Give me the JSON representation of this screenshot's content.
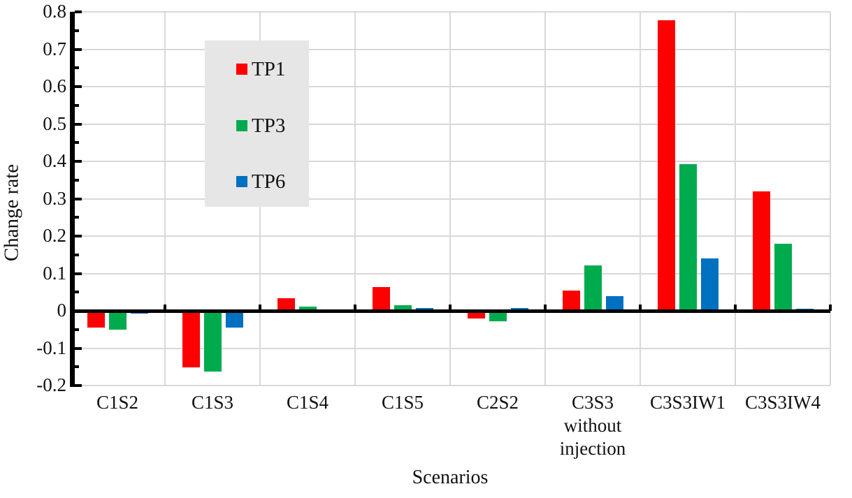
{
  "chart_data": {
    "type": "bar",
    "title": "",
    "xlabel": "Scenarios",
    "ylabel": "Change rate",
    "categories": [
      "C1S2",
      "C1S3",
      "C1S4",
      "C1S5",
      "C2S2",
      "C3S3\nwithout\ninjection",
      "C3S3IW1",
      "C3S3IW4"
    ],
    "series": [
      {
        "name": "TP1",
        "color": "#FF0000",
        "values": [
          -0.045,
          -0.152,
          0.034,
          0.064,
          -0.021,
          0.055,
          0.778,
          0.32
        ]
      },
      {
        "name": "TP3",
        "color": "#00AB4E",
        "values": [
          -0.05,
          -0.162,
          0.011,
          0.015,
          -0.028,
          0.122,
          0.393,
          0.18
        ]
      },
      {
        "name": "TP6",
        "color": "#0070C0",
        "values": [
          -0.008,
          -0.044,
          0.002,
          0.007,
          0.007,
          0.039,
          0.14,
          0.005
        ]
      }
    ],
    "ylim": [
      -0.2,
      0.8
    ],
    "ytick_step": 0.1,
    "yticks": [
      "0.8",
      "0.7",
      "0.6",
      "0.5",
      "0.4",
      "0.3",
      "0.2",
      "0.1",
      "0",
      "-0.1",
      "-0.2"
    ],
    "grid": true,
    "legend_position": "upper-left-inside",
    "colors": {
      "gridline": "#D8D8D8",
      "axis": "#000000",
      "legend_bg": "#E6E6E6",
      "text": "#111111"
    }
  }
}
